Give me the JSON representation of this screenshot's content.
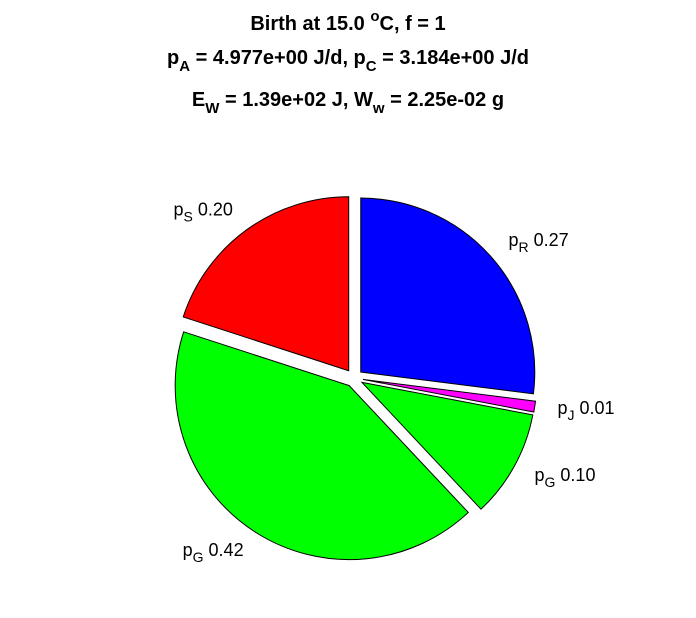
{
  "chart_data": {
    "type": "pie",
    "title": [
      {
        "segments": [
          {
            "t": "Birth at 15.0 "
          },
          {
            "t": "o",
            "sup": true
          },
          {
            "t": "C, f = 1"
          }
        ]
      },
      {
        "segments": [
          {
            "t": "p"
          },
          {
            "t": "A",
            "sub": true
          },
          {
            "t": " = 4.977e+00 J/d, p"
          },
          {
            "t": "C",
            "sub": true
          },
          {
            "t": " = 3.184e+00 J/d"
          }
        ]
      },
      {
        "segments": [
          {
            "t": "E"
          },
          {
            "t": "W",
            "sub": true
          },
          {
            "t": " = 1.39e+02 J, W"
          },
          {
            "t": "w",
            "sub": true
          },
          {
            "t": " = 2.25e-02 g"
          }
        ]
      }
    ],
    "start_angle_deg": 90,
    "direction": "clockwise",
    "exploded": true,
    "slices": [
      {
        "sym": "p",
        "sub": "R",
        "value": 0.27,
        "label": "0.27",
        "color": "#0000ff"
      },
      {
        "sym": "p",
        "sub": "J",
        "value": 0.01,
        "label": "0.01",
        "color": "#ff00ff"
      },
      {
        "sym": "p",
        "sub": "G",
        "value": 0.1,
        "label": "0.10",
        "color": "#00ff00"
      },
      {
        "sym": "p",
        "sub": "G",
        "value": 0.42,
        "label": "0.42",
        "color": "#00ff00"
      },
      {
        "sym": "p",
        "sub": "S",
        "value": 0.2,
        "label": "0.20",
        "color": "#ff0000"
      }
    ]
  }
}
